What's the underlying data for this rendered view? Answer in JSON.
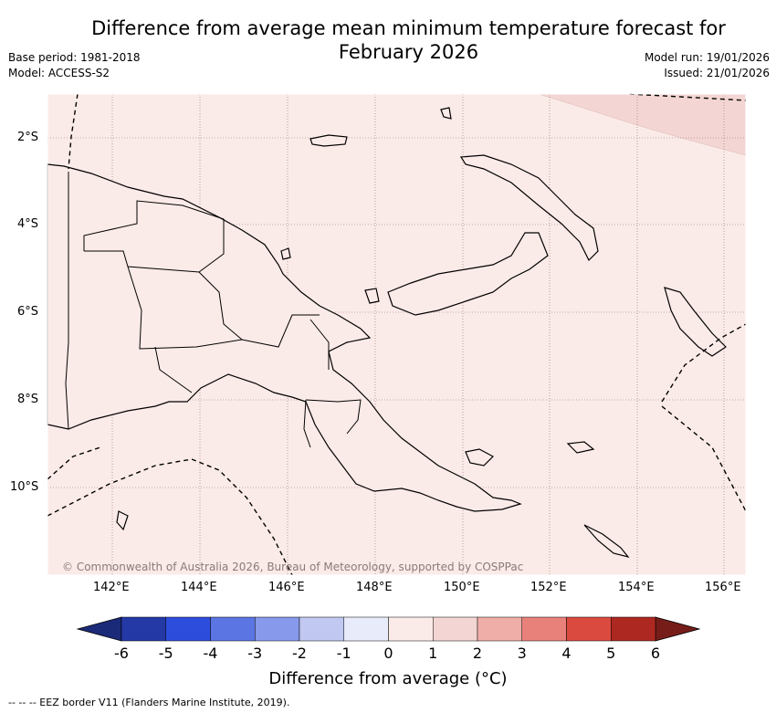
{
  "title": "Difference from average mean minimum temperature forecast for February 2026",
  "meta": {
    "base_period": "Base period: 1981-2018",
    "model": "Model: ACCESS-S2",
    "model_run": "Model run: 19/01/2026",
    "issued": "Issued: 21/01/2026"
  },
  "map": {
    "lat_labels": [
      "2°S",
      "4°S",
      "6°S",
      "8°S",
      "10°S"
    ],
    "lon_labels": [
      "142°E",
      "144°E",
      "146°E",
      "148°E",
      "150°E",
      "152°E",
      "154°E",
      "156°E"
    ],
    "copyright": "© Commonwealth of Australia 2026, Bureau of Meteorology, supported by COSPPac",
    "regions": [
      {
        "name": "most of domain",
        "category": "0 to 1",
        "color": "#fbebe8"
      },
      {
        "name": "north-east corner",
        "category": "1 to 2",
        "color": "#f3d6d3"
      }
    ]
  },
  "colorbar": {
    "ticks": [
      "-6",
      "-5",
      "-4",
      "-3",
      "-2",
      "-1",
      "0",
      "1",
      "2",
      "3",
      "4",
      "5",
      "6"
    ],
    "colors": [
      "#2539a6",
      "#2d4ddd",
      "#5b75e2",
      "#8799ea",
      "#c1c9f2",
      "#e8ebf9",
      "#fbebe8",
      "#f3d6d3",
      "#efaea8",
      "#e8817a",
      "#da4a3f",
      "#ad2820"
    ],
    "under_color": "#1b2a78",
    "over_color": "#761d19",
    "label": "Difference from average (°C)"
  },
  "eez_note": "--  --  -- EEZ border V11 (Flanders Marine Institute, 2019)."
}
